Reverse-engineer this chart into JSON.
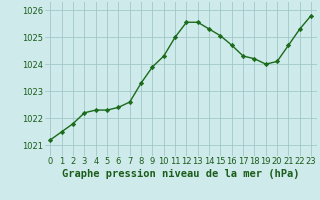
{
  "x": [
    0,
    1,
    2,
    3,
    4,
    5,
    6,
    7,
    8,
    9,
    10,
    11,
    12,
    13,
    14,
    15,
    16,
    17,
    18,
    19,
    20,
    21,
    22,
    23
  ],
  "y": [
    1021.2,
    1021.5,
    1021.8,
    1022.2,
    1022.3,
    1022.3,
    1022.4,
    1022.6,
    1023.3,
    1023.9,
    1024.3,
    1025.0,
    1025.55,
    1025.55,
    1025.3,
    1025.05,
    1024.7,
    1024.3,
    1024.2,
    1024.0,
    1024.1,
    1024.7,
    1025.3,
    1025.8
  ],
  "line_color": "#1a6b1a",
  "marker": "D",
  "marker_size": 2.2,
  "line_width": 1.0,
  "bg_color": "#ceeaea",
  "grid_color": "#a0c8c8",
  "xlabel": "Graphe pression niveau de la mer (hPa)",
  "xlabel_color": "#1a5c1a",
  "xlabel_fontsize": 7.5,
  "tick_color": "#1a5c1a",
  "tick_fontsize": 6.0,
  "ylim": [
    1020.6,
    1026.3
  ],
  "yticks": [
    1021,
    1022,
    1023,
    1024,
    1025,
    1026
  ],
  "xlim": [
    -0.5,
    23.5
  ],
  "xticks": [
    0,
    1,
    2,
    3,
    4,
    5,
    6,
    7,
    8,
    9,
    10,
    11,
    12,
    13,
    14,
    15,
    16,
    17,
    18,
    19,
    20,
    21,
    22,
    23
  ]
}
